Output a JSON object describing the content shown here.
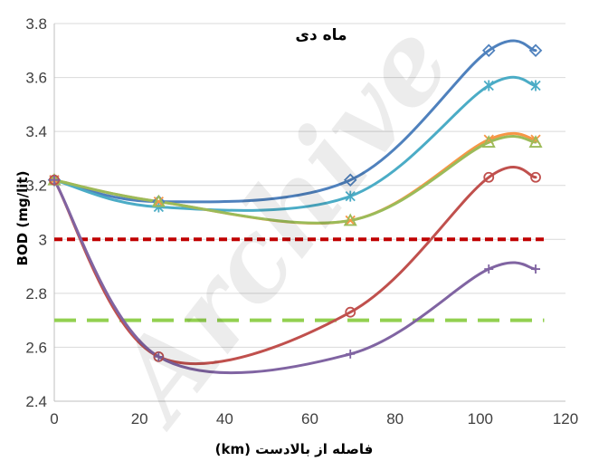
{
  "chart_data": {
    "type": "line",
    "title": "ماه دی",
    "xlabel": "فاصله از بالادست (km)",
    "ylabel": "BOD (mg/lit)",
    "xlim": [
      0,
      120
    ],
    "ylim": [
      2.4,
      3.8
    ],
    "xticks": [
      0,
      20,
      40,
      60,
      80,
      100,
      120
    ],
    "yticks": [
      2.4,
      2.6,
      2.8,
      3.0,
      3.2,
      3.4,
      3.6,
      3.8
    ],
    "ytick_labels": [
      "2.4",
      "2.6",
      "2.8",
      "3",
      "3.2",
      "3.4",
      "3.6",
      "3.8"
    ],
    "x": [
      0,
      24.5,
      69.5,
      102,
      113
    ],
    "series": [
      {
        "values": [
          3.22,
          3.14,
          3.22,
          3.7,
          3.7
        ],
        "color": "#4f81bd",
        "marker": "diamond"
      },
      {
        "values": [
          3.22,
          3.12,
          3.16,
          3.57,
          3.57
        ],
        "color": "#4bacc6",
        "marker": "star"
      },
      {
        "values": [
          3.22,
          3.14,
          3.07,
          3.37,
          3.37
        ],
        "color": "#f79646",
        "marker": "x"
      },
      {
        "values": [
          3.22,
          3.14,
          3.07,
          3.36,
          3.36
        ],
        "color": "#9bbb59",
        "marker": "triangle"
      },
      {
        "values": [
          3.22,
          2.565,
          2.73,
          3.23,
          3.23
        ],
        "color": "#c0504d",
        "marker": "circle"
      },
      {
        "values": [
          3.22,
          2.565,
          2.575,
          2.89,
          2.89
        ],
        "color": "#8064a2",
        "marker": "plus"
      }
    ],
    "reference_lines": [
      {
        "y": 3.0,
        "color": "#c00000",
        "style": "dotted"
      },
      {
        "y": 2.7,
        "color": "#92d050",
        "style": "dashed"
      }
    ],
    "grid": "horizontal"
  },
  "watermark": "Archive"
}
